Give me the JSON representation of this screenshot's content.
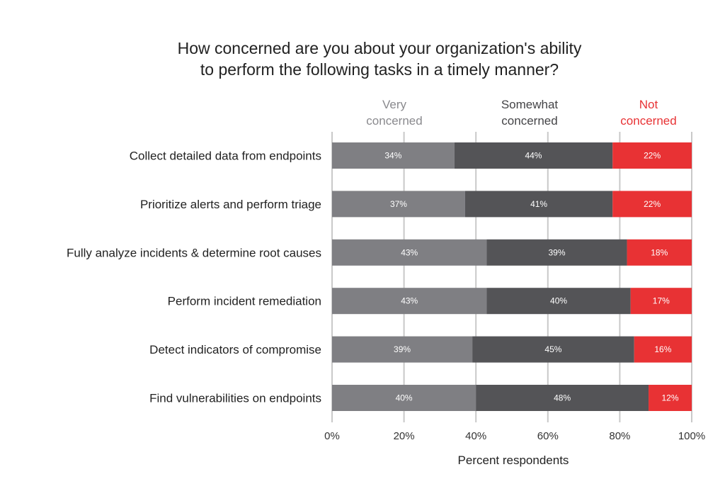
{
  "chart_data": {
    "type": "bar",
    "orientation": "horizontal",
    "stacked": true,
    "title_lines": [
      "How concerned are you about your organization's ability",
      "to perform the following tasks in a timely manner?"
    ],
    "categories": [
      "Collect detailed data from endpoints",
      "Prioritize alerts and perform triage",
      "Fully analyze incidents & determine root causes",
      "Perform incident remediation",
      "Detect indicators of compromise",
      "Find vulnerabilities on endpoints"
    ],
    "series": [
      {
        "name_lines": [
          "Very",
          "concerned"
        ],
        "color": "#7f7f83",
        "legend_color": "#8a8a8e",
        "values": [
          34,
          37,
          43,
          43,
          39,
          40
        ]
      },
      {
        "name_lines": [
          "Somewhat",
          "concerned"
        ],
        "color": "#545457",
        "legend_color": "#444447",
        "values": [
          44,
          41,
          39,
          40,
          45,
          48
        ]
      },
      {
        "name_lines": [
          "Not",
          "concerned"
        ],
        "color": "#e83234",
        "legend_color": "#e83234",
        "values": [
          22,
          22,
          18,
          17,
          16,
          12
        ]
      }
    ],
    "value_suffix": "%",
    "xlabel": "Percent respondents",
    "xlim": [
      0,
      100
    ],
    "xticks": [
      0,
      20,
      40,
      60,
      80,
      100
    ],
    "xtick_labels": [
      "0%",
      "20%",
      "40%",
      "60%",
      "80%",
      "100%"
    ],
    "grid": true,
    "legend_position": "top"
  }
}
